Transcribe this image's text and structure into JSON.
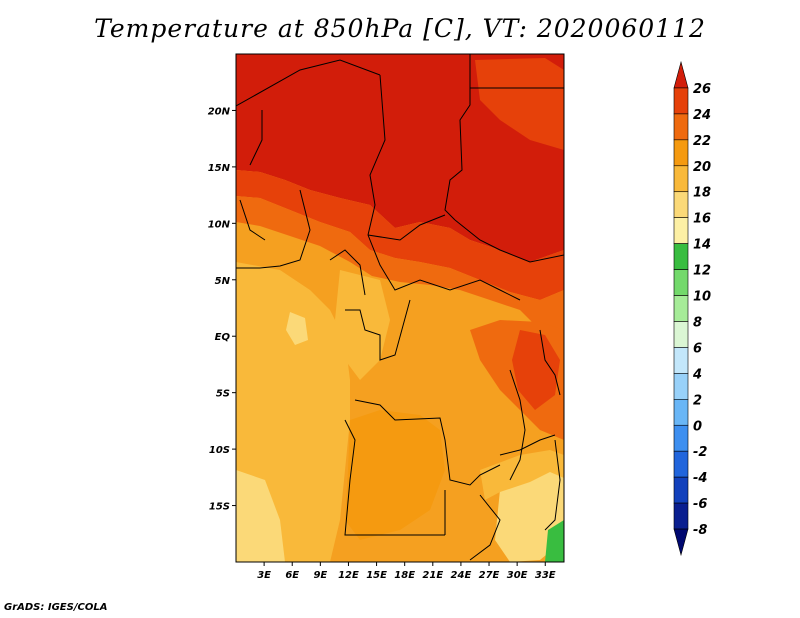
{
  "title": "Temperature at 850hPa [C], VT: 2020060112",
  "credit": "GrADS: IGES/COLA",
  "map": {
    "lon_range": [
      0,
      35
    ],
    "lat_range": [
      -20,
      25
    ],
    "x_ticks": [
      "3E",
      "6E",
      "9E",
      "12E",
      "15E",
      "18E",
      "21E",
      "24E",
      "27E",
      "30E",
      "33E"
    ],
    "y_ticks": [
      "20N",
      "15N",
      "10N",
      "5N",
      "EQ",
      "5S",
      "10S",
      "15S"
    ]
  },
  "colorbar": {
    "labels": [
      "26",
      "24",
      "22",
      "20",
      "18",
      "16",
      "14",
      "12",
      "10",
      "8",
      "6",
      "4",
      "2",
      "0",
      "-2",
      "-4",
      "-6",
      "-8"
    ],
    "colors": [
      "#d21d0a",
      "#e6410a",
      "#ef6a0f",
      "#f59a10",
      "#f9b93a",
      "#fbd978",
      "#fdf0a5",
      "#39bd40",
      "#73d96b",
      "#a6ec98",
      "#dbf6d4",
      "#c3e7fb",
      "#98d1f9",
      "#69b6f6",
      "#3d8ff0",
      "#2165dc",
      "#1241bc",
      "#0a1f90",
      "#000870"
    ]
  }
}
